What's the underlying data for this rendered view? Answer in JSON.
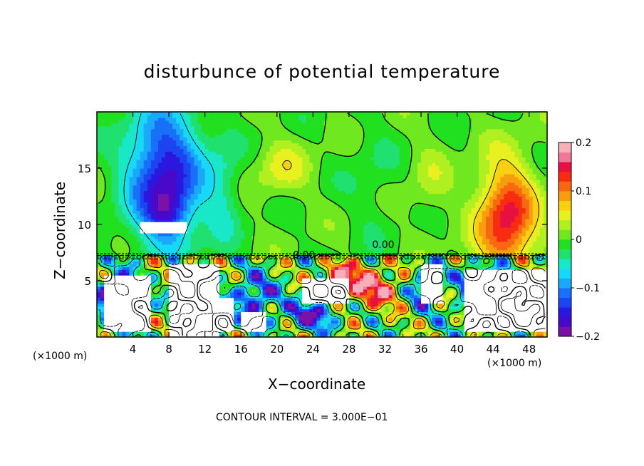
{
  "chart_data": {
    "type": "heatmap",
    "title": "disturbunce of potential temperature",
    "xlabel": "X−coordinate",
    "ylabel": "Z−coordinate",
    "x_unit_left": "(×1000 m)",
    "x_unit_right": "(×1000 m)",
    "footnote": "CONTOUR INTERVAL = 3.000E−01",
    "xlim": [
      0,
      50
    ],
    "ylim": [
      0,
      20
    ],
    "x_ticks": [
      4,
      8,
      12,
      16,
      20,
      24,
      28,
      32,
      36,
      40,
      44,
      48
    ],
    "x_tick_labels": [
      "4",
      "8",
      "12",
      "16",
      "20",
      "24",
      "28",
      "32",
      "36",
      "40",
      "44",
      "48"
    ],
    "y_ticks": [
      5,
      10,
      15
    ],
    "y_tick_labels": [
      "5",
      "10",
      "15"
    ],
    "contour_labels": [
      {
        "text": "0.00",
        "x": 31.8,
        "y": 7.9
      },
      {
        "text": "0.00",
        "x": 23.0,
        "y": 7.0
      }
    ],
    "colorbar": {
      "range": [
        -0.2,
        0.2
      ],
      "ticks": [
        0.2,
        0.1,
        0,
        -0.1,
        -0.2
      ],
      "tick_labels": [
        "0.2",
        "0.1",
        "0",
        "−0.1",
        "−0.2"
      ],
      "colors": [
        "#7a12a8",
        "#4a08c8",
        "#2a18e0",
        "#1c44f0",
        "#1870f8",
        "#1aa8f8",
        "#18d8f8",
        "#18e8c8",
        "#20e070",
        "#20e020",
        "#70e820",
        "#b0f020",
        "#e8f020",
        "#f8d010",
        "#f89c10",
        "#f86810",
        "#f82c10",
        "#e81040",
        "#f07898",
        "#f8b0b8"
      ]
    },
    "fields": {
      "upper_blobs": [
        {
          "name": "cold-plume",
          "x": 7.5,
          "z": 14.5,
          "sx": 4.2,
          "sz": 6.0,
          "value": -0.16
        },
        {
          "name": "cold-plume-core",
          "x": 7.8,
          "z": 11.0,
          "sx": 2.2,
          "sz": 2.2,
          "value": -0.07
        },
        {
          "name": "cold-right-edge",
          "x": 14.0,
          "z": 13.0,
          "sx": 2.0,
          "sz": 5.0,
          "value": -0.04
        },
        {
          "name": "warm-right",
          "x": 45.5,
          "z": 10.5,
          "sx": 3.2,
          "sz": 5.0,
          "value": 0.15
        },
        {
          "name": "warm-center",
          "x": 20.5,
          "z": 15.0,
          "sx": 3.0,
          "sz": 2.5,
          "value": 0.045
        },
        {
          "name": "warm-center-2",
          "x": 37.0,
          "z": 14.0,
          "sx": 2.2,
          "sz": 4.0,
          "value": 0.025
        },
        {
          "name": "cool-band",
          "x": 30.5,
          "z": 14.0,
          "sx": 2.5,
          "sz": 5.0,
          "value": -0.02
        }
      ],
      "lower_blobs": [
        {
          "name": "cold-low-left",
          "x": 2.5,
          "z": 3.2,
          "sx": 2.5,
          "sz": 2.5,
          "value": -0.18
        },
        {
          "name": "cold-low-mid",
          "x": 17.5,
          "z": 3.5,
          "sx": 2.5,
          "sz": 2.0,
          "value": -0.15
        },
        {
          "name": "cold-low-24",
          "x": 24.0,
          "z": 2.0,
          "sx": 3.0,
          "sz": 1.2,
          "value": -0.16
        },
        {
          "name": "warm-low-30",
          "x": 30.5,
          "z": 4.5,
          "sx": 3.5,
          "sz": 2.0,
          "value": 0.15
        },
        {
          "name": "warm-low-26",
          "x": 26.5,
          "z": 5.5,
          "sx": 2.0,
          "sz": 1.2,
          "value": 0.12
        },
        {
          "name": "cold-low-42",
          "x": 42.5,
          "z": 4.0,
          "sx": 2.5,
          "sz": 2.5,
          "value": -0.14
        },
        {
          "name": "cold-low-36",
          "x": 36.0,
          "z": 4.5,
          "sx": 1.5,
          "sz": 2.0,
          "value": -0.12
        },
        {
          "name": "warm-low-10",
          "x": 10.5,
          "z": 5.5,
          "sx": 1.0,
          "sz": 1.2,
          "value": 0.12
        },
        {
          "name": "cold-low-12",
          "x": 12.5,
          "z": 2.5,
          "sx": 1.5,
          "sz": 2.0,
          "value": -0.13
        },
        {
          "name": "warm-low-46",
          "x": 46.0,
          "z": 2.0,
          "sx": 3.0,
          "sz": 1.5,
          "value": 0.06
        }
      ],
      "saturated_regions": [
        {
          "x0": 5.0,
          "x1": 10.0,
          "z0": 9.2,
          "z1": 10.2
        },
        {
          "x0": 0.8,
          "x1": 6.0,
          "z0": 0.5,
          "z1": 5.5
        },
        {
          "x0": 8.0,
          "x1": 13.5,
          "z0": 0.0,
          "z1": 6.5
        },
        {
          "x0": 13.8,
          "x1": 15.2,
          "z0": 0.5,
          "z1": 3.5
        },
        {
          "x0": 16.0,
          "x1": 18.8,
          "z0": 0.5,
          "z1": 2.2
        },
        {
          "x0": 23.0,
          "x1": 28.0,
          "z0": 3.0,
          "z1": 5.2
        },
        {
          "x0": 36.0,
          "x1": 38.5,
          "z0": 3.0,
          "z1": 6.5
        },
        {
          "x0": 41.0,
          "x1": 50.0,
          "z0": 0.5,
          "z1": 6.0
        }
      ],
      "inversion_layer_z": 7.2
    }
  }
}
